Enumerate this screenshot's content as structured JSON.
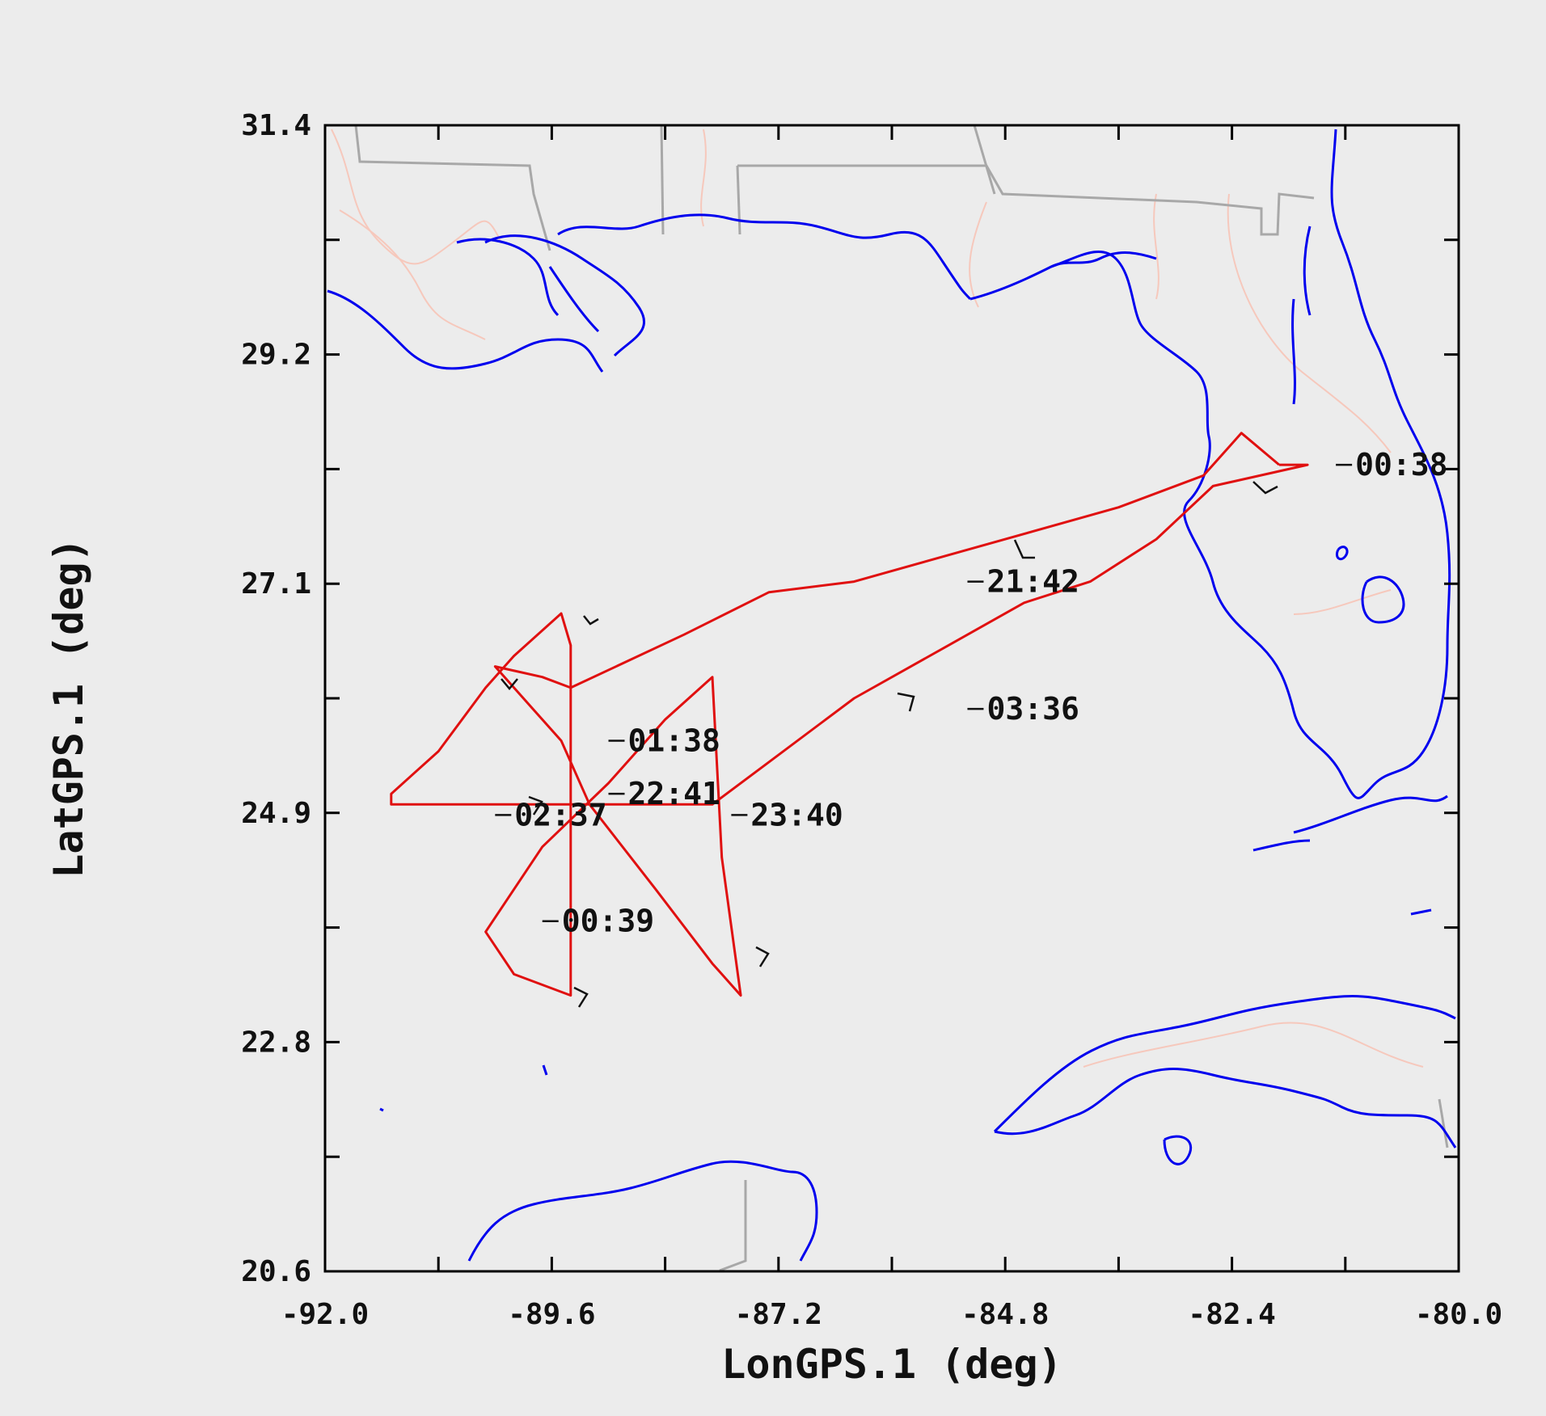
{
  "chart_data": {
    "type": "map-track",
    "xlabel": "LonGPS.1 (deg)",
    "ylabel": "LatGPS.1 (deg)",
    "xlim": [
      -92.0,
      -80.0
    ],
    "ylim": [
      20.6,
      31.4
    ],
    "x_ticks": [
      "-92.0",
      "-89.6",
      "-87.2",
      "-84.8",
      "-82.4",
      "-80.0"
    ],
    "y_ticks": [
      "31.4",
      "29.2",
      "27.1",
      "24.9",
      "22.8",
      "20.6"
    ],
    "colors": {
      "track": "#e01010",
      "coastline": "#0000ee",
      "borders": "#a8a8a8",
      "rivers": "#f6c8bc",
      "background": "#ececec"
    },
    "flight_track": [
      [
        -81.9,
        28.2
      ],
      [
        -82.3,
        28.5
      ],
      [
        -82.7,
        28.1
      ],
      [
        -83.6,
        27.8
      ],
      [
        -85.2,
        27.4
      ],
      [
        -86.4,
        27.1
      ],
      [
        -87.3,
        27.0
      ],
      [
        -88.2,
        26.6
      ],
      [
        -89.4,
        26.1
      ],
      [
        -89.7,
        26.2
      ],
      [
        -90.2,
        26.3
      ],
      [
        -89.8,
        25.9
      ],
      [
        -89.5,
        25.6
      ],
      [
        -89.2,
        25.0
      ],
      [
        -88.5,
        24.2
      ],
      [
        -87.9,
        23.5
      ],
      [
        -87.6,
        23.2
      ],
      [
        -87.8,
        24.5
      ],
      [
        -87.9,
        26.2
      ],
      [
        -88.4,
        25.8
      ],
      [
        -89.0,
        25.2
      ],
      [
        -89.7,
        24.6
      ],
      [
        -90.3,
        23.8
      ],
      [
        -90.0,
        23.4
      ],
      [
        -89.4,
        23.2
      ],
      [
        -89.4,
        24.8
      ],
      [
        -89.4,
        26.5
      ],
      [
        -89.5,
        26.8
      ],
      [
        -90.0,
        26.4
      ],
      [
        -90.3,
        26.1
      ],
      [
        -90.8,
        25.5
      ],
      [
        -91.3,
        25.1
      ],
      [
        -91.3,
        25.0
      ],
      [
        -89.6,
        25.0
      ],
      [
        -88.4,
        25.0
      ],
      [
        -87.9,
        25.0
      ],
      [
        -87.3,
        25.4
      ],
      [
        -86.4,
        26.0
      ],
      [
        -85.4,
        26.5
      ],
      [
        -84.6,
        26.9
      ],
      [
        -83.9,
        27.1
      ],
      [
        -83.2,
        27.5
      ],
      [
        -82.6,
        28.0
      ],
      [
        -81.6,
        28.2
      ],
      [
        -81.9,
        28.2
      ]
    ],
    "time_labels": [
      {
        "text": "21:42",
        "lon": -85.2,
        "lat": 27.1
      },
      {
        "text": "03:36",
        "lon": -85.2,
        "lat": 25.9
      },
      {
        "text": "01:38",
        "lon": -89.0,
        "lat": 25.6
      },
      {
        "text": "22:41",
        "lon": -89.0,
        "lat": 25.1
      },
      {
        "text": "02:37",
        "lon": -90.2,
        "lat": 24.9
      },
      {
        "text": "23:40",
        "lon": -87.7,
        "lat": 24.9
      },
      {
        "text": "00:39",
        "lon": -89.7,
        "lat": 23.9
      },
      {
        "text": "00:38",
        "lon": -81.3,
        "lat": 28.2
      }
    ]
  }
}
